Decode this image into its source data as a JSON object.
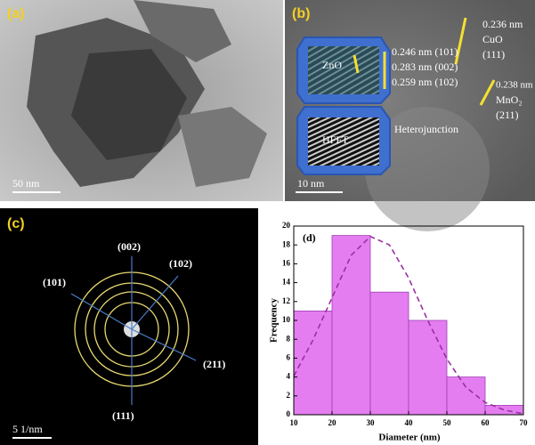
{
  "panel_a": {
    "tag": "(a)",
    "scale_bar": "50 nm"
  },
  "panel_b": {
    "tag": "(b)",
    "zno": "ZnO",
    "hfft": "HFFT",
    "heterojunction": "Heterojunction",
    "zno_planes": [
      "0.246 nm (101)",
      "0.283 nm (002)",
      "0.259 nm (102)"
    ],
    "cuo": [
      "0.236 nm",
      "CuO",
      "(111)"
    ],
    "mno2": [
      "0.238 nm",
      "MnO₂",
      "(211)"
    ],
    "scale_bar": "10 nm"
  },
  "panel_c": {
    "tag": "(c)",
    "rings": [
      "(002)",
      "(102)",
      "(101)",
      "(211)",
      "(111)"
    ],
    "scale_bar": "5 1/nm"
  },
  "chart_data": {
    "type": "histogram",
    "tag": "(d)",
    "x_label": "Diameter (nm)",
    "y_label": "Frequency",
    "bins": [
      10,
      20,
      30,
      40,
      50,
      60,
      70
    ],
    "values": [
      11,
      19,
      13,
      10,
      4,
      1
    ],
    "color": "#e47ef0",
    "edge_color": "#a03cb4",
    "fit": {
      "x": [
        10,
        15,
        20,
        25,
        30,
        35,
        40,
        45,
        50,
        55,
        60,
        65,
        70
      ],
      "values": [
        4.1,
        7.9,
        12.4,
        16.9,
        18.9,
        18.0,
        14.5,
        10.0,
        5.9,
        2.9,
        1.3,
        0.5,
        0.1
      ],
      "color": "#9b2fa0"
    },
    "xlim": [
      10,
      70
    ],
    "xticks": [
      10,
      20,
      30,
      40,
      50,
      60,
      70
    ],
    "ylim": [
      0,
      20
    ],
    "yticks": [
      0,
      2,
      4,
      6,
      8,
      10,
      12,
      14,
      16,
      18,
      20
    ]
  }
}
